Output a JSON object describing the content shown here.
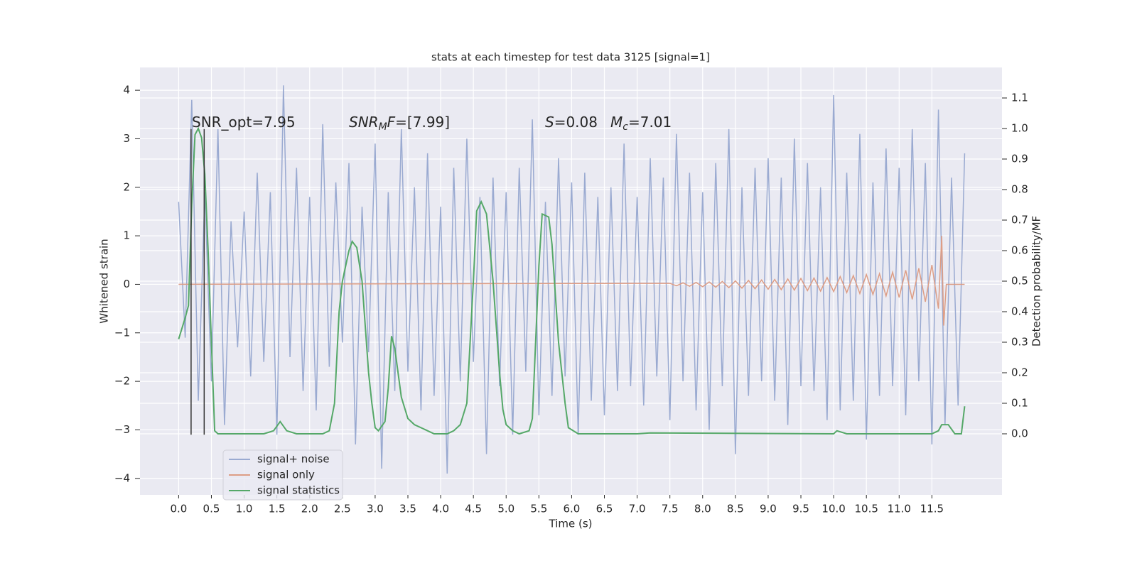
{
  "chart_data": {
    "type": "line",
    "title": "stats at each timestep for test data 3125 [signal=1]",
    "xlabel": "Time (s)",
    "ylabel": "Whitened strain",
    "y2label": "Detection probability/MF",
    "background": "#eaeaf2",
    "grid": true,
    "legend": "lower left",
    "xlim": [
      -0.59,
      12.57
    ],
    "ylim": [
      -4.34,
      4.47
    ],
    "y2lim": [
      -0.2,
      1.2
    ],
    "xticks": [
      {
        "value": 0,
        "label": "0.0"
      },
      0.5,
      {
        "value": 1,
        "label": "1.0"
      },
      1.5,
      {
        "value": 2,
        "label": "2.0"
      },
      2.5,
      {
        "value": 3,
        "label": "3.0"
      },
      3.5,
      {
        "value": 4,
        "label": "4.0"
      },
      4.5,
      {
        "value": 5,
        "label": "5.0"
      },
      5.5,
      {
        "value": 6,
        "label": "6.0"
      },
      6.5,
      {
        "value": 7,
        "label": "7.0"
      },
      7.5,
      {
        "value": 8,
        "label": "8.0"
      },
      8.5,
      {
        "value": 9,
        "label": "9.0"
      },
      9.5,
      {
        "value": 10,
        "label": "10.0"
      },
      10.5,
      {
        "value": 11,
        "label": "11.0"
      },
      11.5
    ],
    "yticks": [
      {
        "value": -4,
        "label": "−4"
      },
      {
        "value": -3,
        "label": "−3"
      },
      {
        "value": -2,
        "label": "−2"
      },
      {
        "value": -1,
        "label": "−1"
      },
      0,
      1,
      2,
      3,
      4
    ],
    "y2ticks": [
      {
        "value": 0,
        "label": "0.0"
      },
      0.1,
      0.2,
      0.3,
      0.4,
      0.5,
      0.6,
      0.7,
      0.8,
      0.9,
      {
        "value": 1,
        "label": "1.0"
      },
      1.1
    ],
    "annotations": [
      {
        "parts": [
          {
            "text": "SNR_opt=7.95"
          }
        ]
      },
      {
        "parts": [
          {
            "text": "SNR",
            "style": "italic"
          },
          {
            "text": "M",
            "style": "sub"
          },
          {
            "text": "F",
            "style": "italic"
          },
          {
            "text": "=[7.99]"
          }
        ]
      },
      {
        "parts": [
          {
            "text": "S",
            "style": "italic"
          },
          {
            "text": "=0.08"
          }
        ]
      },
      {
        "parts": [
          {
            "text": "M",
            "style": "italic"
          },
          {
            "text": "c",
            "style": "sub"
          },
          {
            "text": "=7.01"
          }
        ]
      }
    ],
    "vlines": [
      {
        "x": 0.19,
        "ymin": -3.1,
        "ymax": 3.2,
        "color": "#333333"
      },
      {
        "x": 0.39,
        "ymin": -3.1,
        "ymax": 3.2,
        "color": "#333333"
      }
    ],
    "series": [
      {
        "name": "signal+ noise",
        "color": "#9aaad1",
        "axis": "y",
        "x": [
          0,
          0.1,
          0.2,
          0.3,
          0.4,
          0.5,
          0.6,
          0.7,
          0.8,
          0.9,
          1,
          1.1,
          1.2,
          1.3,
          1.4,
          1.5,
          1.6,
          1.7,
          1.8,
          1.9,
          2,
          2.1,
          2.2,
          2.3,
          2.4,
          2.5,
          2.6,
          2.7,
          2.8,
          2.9,
          3,
          3.1,
          3.2,
          3.3,
          3.4,
          3.5,
          3.6,
          3.7,
          3.8,
          3.9,
          4,
          4.1,
          4.2,
          4.3,
          4.4,
          4.5,
          4.6,
          4.7,
          4.8,
          4.9,
          5,
          5.1,
          5.2,
          5.3,
          5.4,
          5.5,
          5.6,
          5.7,
          5.8,
          5.9,
          6,
          6.1,
          6.2,
          6.3,
          6.4,
          6.5,
          6.6,
          6.7,
          6.8,
          6.9,
          7,
          7.1,
          7.2,
          7.3,
          7.4,
          7.5,
          7.6,
          7.7,
          7.8,
          7.9,
          8,
          8.1,
          8.2,
          8.3,
          8.4,
          8.5,
          8.6,
          8.7,
          8.8,
          8.9,
          9,
          9.1,
          9.2,
          9.3,
          9.4,
          9.5,
          9.6,
          9.7,
          9.8,
          9.9,
          10,
          10.1,
          10.2,
          10.3,
          10.4,
          10.5,
          10.6,
          10.7,
          10.8,
          10.9,
          11,
          11.1,
          11.2,
          11.3,
          11.4,
          11.5,
          11.6,
          11.7,
          11.8,
          11.9,
          12
        ],
        "values": [
          1.7,
          -1.1,
          3.8,
          -2.4,
          1.9,
          -2.0,
          3.2,
          -2.9,
          1.3,
          -1.3,
          1.5,
          -1.9,
          2.3,
          -1.6,
          1.9,
          -3.1,
          4.1,
          -1.5,
          2.4,
          -2.2,
          1.8,
          -2.6,
          3.3,
          -1.7,
          2.1,
          -1.2,
          2.5,
          -3.3,
          1.6,
          -1.4,
          2.9,
          -3.8,
          1.9,
          -2.2,
          3.2,
          -1.8,
          2.0,
          -2.6,
          2.7,
          -2.3,
          1.6,
          -3.9,
          2.4,
          -2.0,
          3.0,
          -1.6,
          1.8,
          -3.5,
          2.2,
          -2.1,
          1.9,
          -3.1,
          2.4,
          -1.8,
          3.4,
          -2.7,
          1.7,
          -2.3,
          2.6,
          -1.9,
          2.1,
          -3.1,
          2.3,
          -2.4,
          1.8,
          -2.7,
          2.0,
          -2.2,
          2.9,
          -2.1,
          1.8,
          -2.5,
          2.6,
          -1.9,
          2.2,
          -2.8,
          3.1,
          -2.0,
          2.3,
          -2.6,
          1.9,
          -3.0,
          2.5,
          -2.1,
          3.2,
          -3.5,
          2.0,
          -2.3,
          2.4,
          -2.0,
          2.6,
          -2.4,
          2.2,
          -2.9,
          3.0,
          -2.1,
          2.5,
          -2.2,
          2.0,
          -2.8,
          3.9,
          -2.6,
          2.3,
          -2.4,
          3.1,
          -3.2,
          2.1,
          -2.3,
          2.8,
          -2.1,
          2.4,
          -2.7,
          3.2,
          -2.0,
          2.5,
          -3.3,
          3.6,
          -2.9,
          2.2,
          -2.5,
          2.7
        ]
      },
      {
        "name": "signal only",
        "color": "#dd9d85",
        "axis": "y",
        "x": [
          0,
          7.5,
          7.6,
          7.7,
          7.8,
          7.9,
          8,
          8.1,
          8.2,
          8.3,
          8.4,
          8.5,
          8.6,
          8.7,
          8.8,
          8.9,
          9,
          9.1,
          9.2,
          9.3,
          9.4,
          9.5,
          9.6,
          9.7,
          9.8,
          9.9,
          10,
          10.1,
          10.2,
          10.3,
          10.4,
          10.5,
          10.6,
          10.7,
          10.8,
          10.9,
          11,
          11.1,
          11.2,
          11.3,
          11.4,
          11.5,
          11.6,
          11.65,
          11.68,
          11.72,
          12
        ],
        "values": [
          0,
          0.02,
          -0.03,
          0.03,
          -0.04,
          0.04,
          -0.05,
          0.05,
          -0.06,
          0.06,
          -0.07,
          0.07,
          -0.08,
          0.08,
          -0.09,
          0.09,
          -0.1,
          0.1,
          -0.11,
          0.11,
          -0.12,
          0.12,
          -0.13,
          0.13,
          -0.14,
          0.14,
          -0.15,
          0.16,
          -0.17,
          0.18,
          -0.19,
          0.2,
          -0.21,
          0.22,
          -0.24,
          0.25,
          -0.27,
          0.29,
          -0.31,
          0.33,
          -0.36,
          0.4,
          -0.5,
          1.0,
          -0.85,
          0,
          0
        ]
      },
      {
        "name": "signal statistics",
        "color": "#55a868",
        "axis": "y2",
        "x": [
          0,
          0.1,
          0.15,
          0.2,
          0.25,
          0.3,
          0.35,
          0.4,
          0.45,
          0.5,
          0.55,
          0.6,
          1,
          1.3,
          1.45,
          1.55,
          1.65,
          1.8,
          2.2,
          2.3,
          2.38,
          2.45,
          2.5,
          2.6,
          2.65,
          2.72,
          2.8,
          2.9,
          2.95,
          3,
          3.05,
          3.15,
          3.2,
          3.25,
          3.3,
          3.4,
          3.5,
          3.6,
          3.7,
          3.8,
          3.9,
          4.1,
          4.2,
          4.3,
          4.4,
          4.5,
          4.55,
          4.62,
          4.7,
          4.8,
          4.9,
          4.95,
          5,
          5.1,
          5.2,
          5.35,
          5.4,
          5.5,
          5.55,
          5.65,
          5.7,
          5.8,
          5.9,
          5.95,
          6.1,
          7,
          7.2,
          10,
          10.05,
          10.2,
          11.5,
          11.6,
          11.65,
          11.75,
          11.85,
          11.95,
          12
        ],
        "values": [
          0.31,
          0.38,
          0.42,
          0.75,
          0.98,
          1.0,
          0.97,
          0.85,
          0.6,
          0.3,
          0.01,
          0,
          0,
          0,
          0.01,
          0.04,
          0.01,
          0,
          0,
          0.01,
          0.1,
          0.4,
          0.5,
          0.6,
          0.63,
          0.61,
          0.5,
          0.2,
          0.1,
          0.02,
          0.01,
          0.04,
          0.15,
          0.32,
          0.28,
          0.12,
          0.05,
          0.03,
          0.02,
          0.01,
          0,
          0,
          0.01,
          0.03,
          0.1,
          0.5,
          0.73,
          0.76,
          0.72,
          0.5,
          0.2,
          0.08,
          0.03,
          0.01,
          0,
          0.01,
          0.05,
          0.55,
          0.72,
          0.71,
          0.62,
          0.3,
          0.1,
          0.02,
          0,
          0,
          0.003,
          0,
          0.01,
          0,
          0,
          0.01,
          0.03,
          0.03,
          0,
          0,
          0.09
        ]
      }
    ]
  }
}
